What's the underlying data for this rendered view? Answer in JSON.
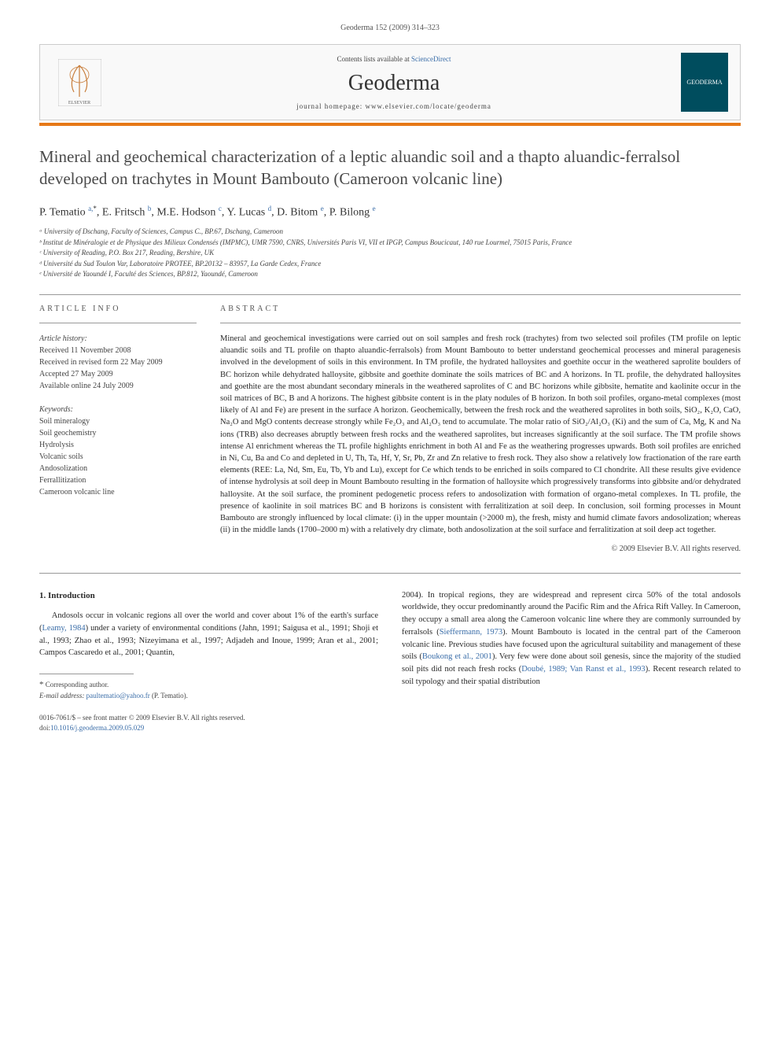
{
  "header": {
    "citation": "Geoderma 152 (2009) 314–323"
  },
  "banner": {
    "contents_line_prefix": "Contents lists available at ",
    "contents_link": "ScienceDirect",
    "journal_name": "Geoderma",
    "homepage_prefix": "journal homepage: ",
    "homepage_url": "www.elsevier.com/locate/geoderma",
    "publisher_label": "ELSEVIER",
    "cover_label": "GEODERMA"
  },
  "title": "Mineral and geochemical characterization of a leptic aluandic soil and a thapto aluandic-ferralsol developed on trachytes in Mount Bambouto (Cameroon volcanic line)",
  "authors_html": "P. Tematio <sup>a,</sup><sup class='sup-star'>*</sup>, E. Fritsch <sup>b</sup>, M.E. Hodson <sup>c</sup>, Y. Lucas <sup>d</sup>, D. Bitom <sup>e</sup>, P. Bilong <sup>e</sup>",
  "affiliations": [
    "ᵃ University of Dschang, Faculty of Sciences, Campus C., BP.67, Dschang, Cameroon",
    "ᵇ Institut de Minéralogie et de Physique des Milieux Condensés (IMPMC), UMR 7590, CNRS, Universités Paris VI, VII et IPGP, Campus Boucicaut, 140 rue Lourmel, 75015 Paris, France",
    "ᶜ University of Reading, P.O. Box 217, Reading, Bershire, UK",
    "ᵈ Université du Sud Toulon Var, Laboratoire PROTEE, BP.20132 – 83957, La Garde Cedex, France",
    "ᵉ Université de Yaoundé I, Faculté des Sciences, BP.812, Yaoundé, Cameroon"
  ],
  "article_info": {
    "label": "ARTICLE INFO",
    "history_label": "Article history:",
    "history": [
      "Received 11 November 2008",
      "Received in revised form 22 May 2009",
      "Accepted 27 May 2009",
      "Available online 24 July 2009"
    ],
    "keywords_label": "Keywords:",
    "keywords": [
      "Soil mineralogy",
      "Soil geochemistry",
      "Hydrolysis",
      "Volcanic soils",
      "Andosolization",
      "Ferrallitization",
      "Cameroon volcanic line"
    ]
  },
  "abstract": {
    "label": "ABSTRACT",
    "text": "Mineral and geochemical investigations were carried out on soil samples and fresh rock (trachytes) from two selected soil profiles (TM profile on leptic aluandic soils and TL profile on thapto aluandic-ferralsols) from Mount Bambouto to better understand geochemical processes and mineral paragenesis involved in the development of soils in this environment. In TM profile, the hydrated halloysites and goethite occur in the weathered saprolite boulders of BC horizon while dehydrated halloysite, gibbsite and goethite dominate the soils matrices of BC and A horizons. In TL profile, the dehydrated halloysites and goethite are the most abundant secondary minerals in the weathered saprolites of C and BC horizons while gibbsite, hematite and kaolinite occur in the soil matrices of BC, B and A horizons. The highest gibbsite content is in the platy nodules of B horizon. In both soil profiles, organo-metal complexes (most likely of Al and Fe) are present in the surface A horizon. Geochemically, between the fresh rock and the weathered saprolites in both soils, SiO₂, K₂O, CaO, Na₂O and MgO contents decrease strongly while Fe₂O₃ and Al₂O₃ tend to accumulate. The molar ratio of SiO₂/Al₂O₃ (Ki) and the sum of Ca, Mg, K and Na ions (TRB) also decreases abruptly between fresh rocks and the weathered saprolites, but increases significantly at the soil surface. The TM profile shows intense Al enrichment whereas the TL profile highlights enrichment in both Al and Fe as the weathering progresses upwards. Both soil profiles are enriched in Ni, Cu, Ba and Co and depleted in U, Th, Ta, Hf, Y, Sr, Pb, Zr and Zn relative to fresh rock. They also show a relatively low fractionation of the rare earth elements (REE: La, Nd, Sm, Eu, Tb, Yb and Lu), except for Ce which tends to be enriched in soils compared to CI chondrite. All these results give evidence of intense hydrolysis at soil deep in Mount Bambouto resulting in the formation of halloysite which progressively transforms into gibbsite and/or dehydrated halloysite. At the soil surface, the prominent pedogenetic process refers to andosolization with formation of organo-metal complexes. In TL profile, the presence of kaolinite in soil matrices BC and B horizons is consistent with ferralitization at soil deep. In conclusion, soil forming processes in Mount Bambouto are strongly influenced by local climate: (i) in the upper mountain (>2000 m), the fresh, misty and humid climate favors andosolization; whereas (ii) in the middle lands (1700–2000 m) with a relatively dry climate, both andosolization at the soil surface and ferralitization at soil deep act together.",
    "copyright": "© 2009 Elsevier B.V. All rights reserved."
  },
  "intro": {
    "heading": "1. Introduction",
    "col1": "Andosols occur in volcanic regions all over the world and cover about 1% of the earth's surface (Leamy, 1984) under a variety of environmental conditions (Jahn, 1991; Saigusa et al., 1991; Shoji et al., 1993; Zhao et al., 1993; Nizeyimana et al., 1997; Adjadeh and Inoue, 1999; Aran et al., 2001; Campos Cascaredo et al., 2001; Quantin,",
    "col2": "2004). In tropical regions, they are widespread and represent circa 50% of the total andosols worldwide, they occur predominantly around the Pacific Rim and the Africa Rift Valley. In Cameroon, they occupy a small area along the Cameroon volcanic line where they are commonly surrounded by ferralsols (Sieffermann, 1973). Mount Bambouto is located in the central part of the Cameroon volcanic line. Previous studies have focused upon the agricultural suitability and management of these soils (Boukong et al., 2001). Very few were done about soil genesis, since the majority of the studied soil pits did not reach fresh rocks (Doubé, 1989; Van Ranst et al., 1993). Recent research related to soil typology and their spatial distribution"
  },
  "footer": {
    "corresponding_label": "Corresponding author.",
    "email_label": "E-mail address:",
    "email": "paultematio@yahoo.fr",
    "email_suffix": "(P. Tematio).",
    "front_matter": "0016-7061/$ – see front matter © 2009 Elsevier B.V. All rights reserved.",
    "doi_prefix": "doi:",
    "doi": "10.1016/j.geoderma.2009.05.029"
  }
}
